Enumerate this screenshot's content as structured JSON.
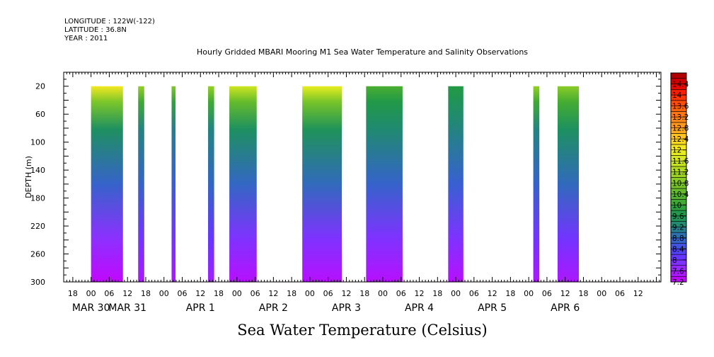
{
  "header": {
    "longitude": "LONGITUDE : 122W(-122)",
    "latitude": "LATITUDE : 36.8N",
    "year": "YEAR : 2011"
  },
  "chart_data": {
    "type": "heatmap",
    "title": "Hourly Gridded MBARI Mooring M1 Sea Water Temperature and Salinity Observations",
    "xlabel": "Sea Water Temperature (Celsius)",
    "ylabel": "DEPTH (m)",
    "ylim": [
      300,
      0
    ],
    "yticks": [
      20,
      60,
      100,
      140,
      180,
      220,
      260,
      300
    ],
    "xlim_hours": [
      -9,
      187.5
    ],
    "xticks_hours": [
      -6,
      0,
      6,
      12,
      18,
      24,
      30,
      36,
      42,
      48,
      54,
      60,
      66,
      72,
      78,
      84,
      90,
      96,
      102,
      108,
      114,
      120,
      126,
      132,
      138,
      144,
      150,
      156,
      162,
      168,
      174,
      180
    ],
    "xtick_labels": [
      "18",
      "00",
      "06",
      "12",
      "18",
      "00",
      "06",
      "12",
      "18",
      "00",
      "06",
      "12",
      "18",
      "00",
      "06",
      "12",
      "18",
      "00",
      "06",
      "12",
      "18",
      "00",
      "06",
      "12",
      "18",
      "00",
      "06",
      "12",
      "18",
      "00",
      "06",
      "12"
    ],
    "date_labels": [
      {
        "text": "MAR 30",
        "hour": 0
      },
      {
        "text": "MAR 31",
        "hour": 12
      },
      {
        "text": "APR   1",
        "hour": 36
      },
      {
        "text": "APR   2",
        "hour": 60
      },
      {
        "text": "APR   3",
        "hour": 84
      },
      {
        "text": "APR   4",
        "hour": 108
      },
      {
        "text": "APR   5",
        "hour": 132
      },
      {
        "text": "APR   6",
        "hour": 156
      }
    ],
    "data_blocks": [
      {
        "start": 0,
        "end": 10.5,
        "surface": 12.1,
        "thermocline": 9.4,
        "bottom": 7.3
      },
      {
        "start": 15.5,
        "end": 17.5,
        "surface": 11.0,
        "thermocline": 9.2,
        "bottom": 7.5
      },
      {
        "start": 26.5,
        "end": 27.8,
        "surface": 10.8,
        "thermocline": 9.1,
        "bottom": 7.5
      },
      {
        "start": 38.5,
        "end": 40.5,
        "surface": 11.0,
        "thermocline": 9.2,
        "bottom": 7.6
      },
      {
        "start": 45.5,
        "end": 54.5,
        "surface": 11.6,
        "thermocline": 9.4,
        "bottom": 7.4
      },
      {
        "start": 69.5,
        "end": 82.5,
        "surface": 11.9,
        "thermocline": 9.5,
        "bottom": 7.4
      },
      {
        "start": 90.5,
        "end": 102.5,
        "surface": 10.2,
        "thermocline": 9.3,
        "bottom": 7.4
      },
      {
        "start": 117.5,
        "end": 122.5,
        "surface": 9.8,
        "thermocline": 9.2,
        "bottom": 7.4
      },
      {
        "start": 145.5,
        "end": 147.5,
        "surface": 11.0,
        "thermocline": 9.2,
        "bottom": 7.5
      },
      {
        "start": 153.5,
        "end": 160.5,
        "surface": 10.9,
        "thermocline": 9.4,
        "bottom": 7.5
      }
    ],
    "colorbar": {
      "min": 7.2,
      "max": 14.8,
      "step": 0.2,
      "labels": [
        "14.4",
        "14",
        "13.6",
        "13.2",
        "12.8",
        "12.4",
        "12",
        "11.6",
        "11.2",
        "10.8",
        "10.4",
        "10",
        "9.6",
        "9.2",
        "8.8",
        "8.4",
        "8",
        "7.6",
        "7.2"
      ],
      "color_stops": [
        [
          7.2,
          "#cc00ff"
        ],
        [
          7.8,
          "#8c30ff"
        ],
        [
          8.2,
          "#5a38ff"
        ],
        [
          8.6,
          "#3a5cd8"
        ],
        [
          9.0,
          "#2878a0"
        ],
        [
          9.4,
          "#1e9060"
        ],
        [
          9.8,
          "#229a44"
        ],
        [
          10.2,
          "#4aae30"
        ],
        [
          10.8,
          "#80c828"
        ],
        [
          11.4,
          "#bde020"
        ],
        [
          12.0,
          "#f0f020"
        ],
        [
          12.4,
          "#ffd020"
        ],
        [
          12.8,
          "#ffa020"
        ],
        [
          13.4,
          "#ff7010"
        ],
        [
          14.0,
          "#ff2800"
        ],
        [
          14.4,
          "#e00000"
        ],
        [
          14.8,
          "#a00000"
        ]
      ]
    }
  }
}
